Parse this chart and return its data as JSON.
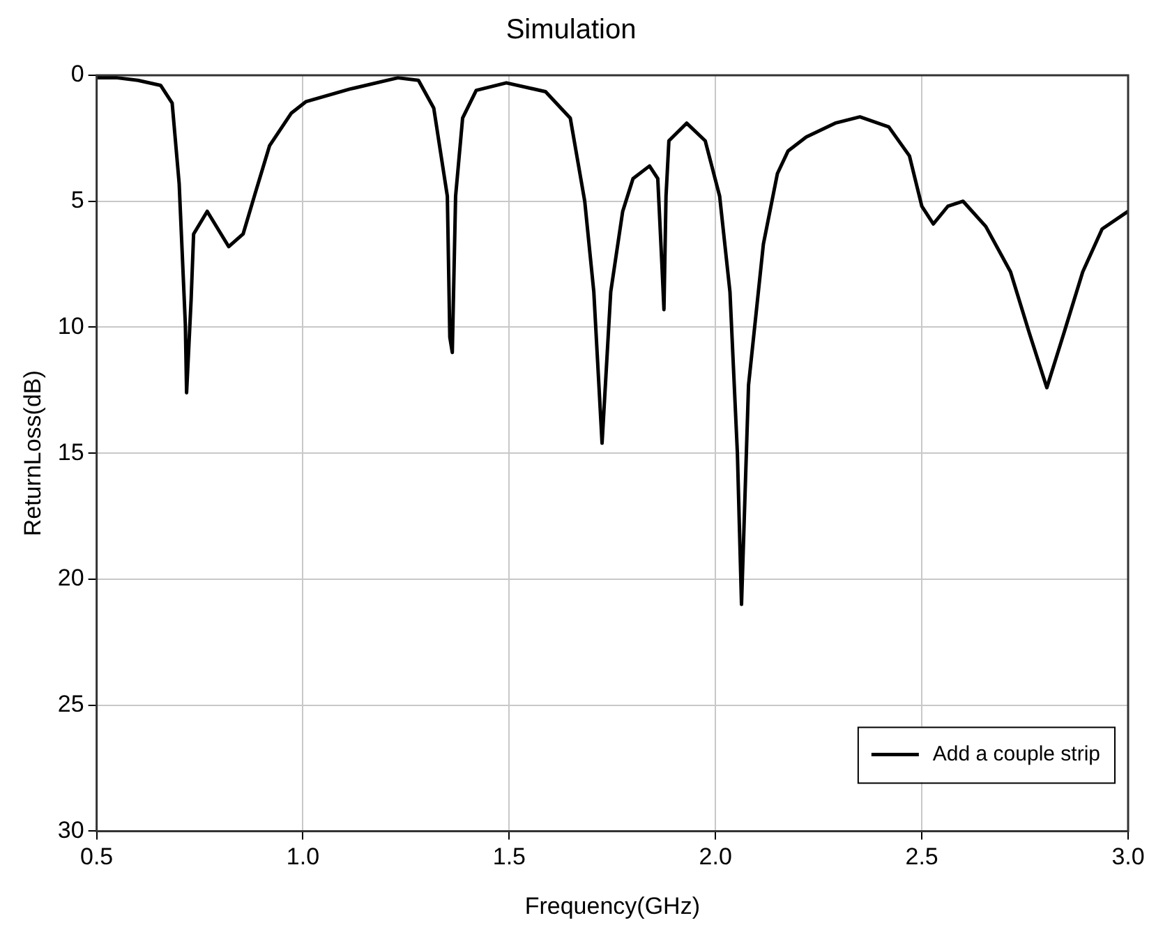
{
  "chart_data": {
    "type": "line",
    "title": "Simulation",
    "xlabel": "Frequency(GHz)",
    "ylabel": "ReturnLoss(dB)",
    "xlim": [
      0.5,
      3.0
    ],
    "xticks": [
      {
        "value": 0.5,
        "label": "0.5"
      },
      {
        "value": 1.0,
        "label": "1.0"
      },
      {
        "value": 1.5,
        "label": "1.5"
      },
      {
        "value": 2.0,
        "label": "2.0"
      },
      {
        "value": 2.5,
        "label": "2.5"
      },
      {
        "value": 3.0,
        "label": "3.0"
      }
    ],
    "ylim": [
      30,
      0
    ],
    "yticks": [
      0,
      5,
      10,
      15,
      20,
      25,
      30
    ],
    "grid": true,
    "legend": "bottom right",
    "marker": "none",
    "line_style": "solid",
    "series": [
      {
        "name": "Add a couple strip",
        "color": "#000000",
        "x": [
          0.5,
          0.55,
          0.6,
          0.655,
          0.683,
          0.7,
          0.715,
          0.718,
          0.729,
          0.735,
          0.768,
          0.82,
          0.855,
          0.884,
          0.919,
          0.972,
          1.007,
          1.113,
          1.23,
          1.28,
          1.317,
          1.35,
          1.356,
          1.362,
          1.37,
          1.387,
          1.42,
          1.493,
          1.588,
          1.648,
          1.683,
          1.705,
          1.725,
          1.746,
          1.775,
          1.8,
          1.84,
          1.86,
          1.87,
          1.875,
          1.88,
          1.887,
          1.93,
          1.975,
          2.01,
          2.035,
          2.053,
          2.063,
          2.08,
          2.116,
          2.15,
          2.176,
          2.22,
          2.29,
          2.35,
          2.42,
          2.47,
          2.5,
          2.528,
          2.563,
          2.6,
          2.655,
          2.715,
          2.76,
          2.803,
          2.845,
          2.89,
          2.937,
          3.0
        ],
        "values": [
          0.1,
          0.1,
          0.2,
          0.4,
          1.1,
          4.3,
          9.9,
          12.6,
          8.9,
          6.3,
          5.4,
          6.8,
          6.3,
          4.7,
          2.8,
          1.5,
          1.05,
          0.55,
          0.1,
          0.2,
          1.3,
          4.8,
          10.4,
          11.0,
          4.8,
          1.7,
          0.6,
          0.3,
          0.65,
          1.7,
          5.0,
          8.6,
          14.6,
          8.6,
          5.4,
          4.1,
          3.6,
          4.1,
          7.5,
          9.3,
          4.8,
          2.6,
          1.9,
          2.6,
          4.8,
          8.6,
          15.0,
          21.0,
          12.3,
          6.7,
          3.9,
          3.0,
          2.45,
          1.9,
          1.65,
          2.05,
          3.2,
          5.2,
          5.9,
          5.2,
          5.0,
          6.0,
          7.8,
          10.2,
          12.4,
          10.2,
          7.8,
          6.1,
          5.4
        ]
      }
    ]
  }
}
